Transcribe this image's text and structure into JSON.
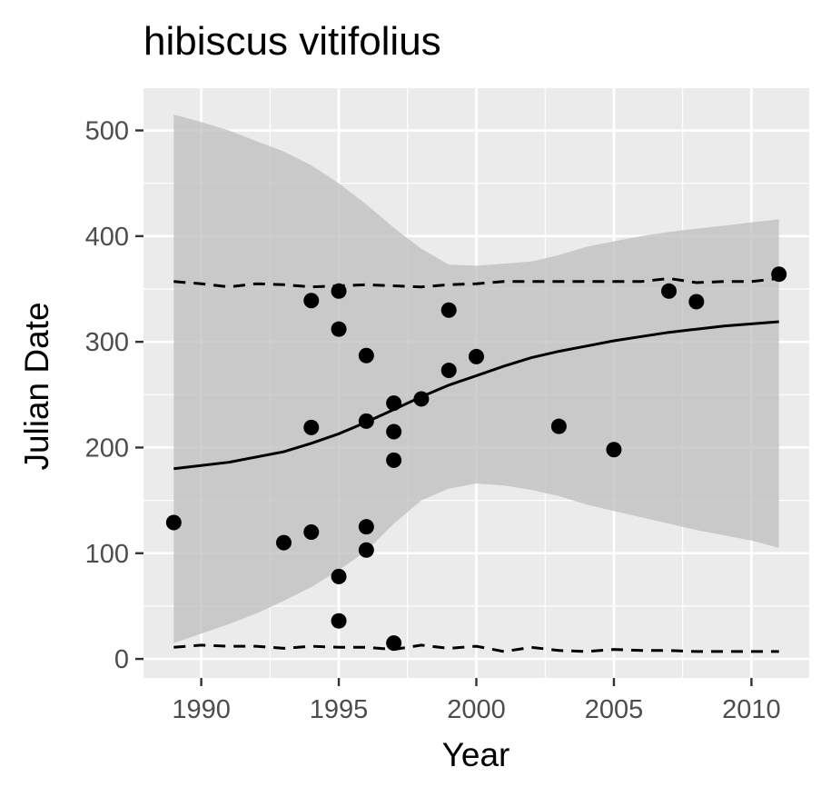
{
  "chart_data": {
    "type": "scatter",
    "title": "hibiscus vitifolius",
    "xlabel": "Year",
    "ylabel": "Julian Date",
    "xlim": [
      1987.9,
      2012.1
    ],
    "ylim": [
      -18,
      540
    ],
    "x_ticks": [
      1990,
      1995,
      2000,
      2005,
      2010
    ],
    "y_ticks": [
      0,
      100,
      200,
      300,
      400,
      500
    ],
    "x_tick_labels": [
      "1990",
      "1995",
      "2000",
      "2005",
      "2010"
    ],
    "y_tick_labels": [
      "0",
      "100",
      "200",
      "300",
      "400",
      "500"
    ],
    "grid": true,
    "legend": "none",
    "points": [
      {
        "x": 1989,
        "y": 129
      },
      {
        "x": 1993,
        "y": 110
      },
      {
        "x": 1994,
        "y": 339
      },
      {
        "x": 1994,
        "y": 219
      },
      {
        "x": 1994,
        "y": 120
      },
      {
        "x": 1995,
        "y": 348
      },
      {
        "x": 1995,
        "y": 312
      },
      {
        "x": 1995,
        "y": 78
      },
      {
        "x": 1995,
        "y": 36
      },
      {
        "x": 1996,
        "y": 287
      },
      {
        "x": 1996,
        "y": 225
      },
      {
        "x": 1996,
        "y": 125
      },
      {
        "x": 1996,
        "y": 103
      },
      {
        "x": 1997,
        "y": 242
      },
      {
        "x": 1997,
        "y": 215
      },
      {
        "x": 1997,
        "y": 188
      },
      {
        "x": 1997,
        "y": 15
      },
      {
        "x": 1998,
        "y": 246
      },
      {
        "x": 1999,
        "y": 330
      },
      {
        "x": 1999,
        "y": 273
      },
      {
        "x": 2000,
        "y": 286
      },
      {
        "x": 2003,
        "y": 220
      },
      {
        "x": 2005,
        "y": 198
      },
      {
        "x": 2007,
        "y": 348
      },
      {
        "x": 2008,
        "y": 338
      },
      {
        "x": 2011,
        "y": 364
      }
    ],
    "fit_line": {
      "x": [
        1989,
        1991,
        1993,
        1994,
        1995,
        1996,
        1997,
        1998,
        1999,
        2000,
        2001,
        2002,
        2003,
        2004,
        2005,
        2006,
        2007,
        2008,
        2009,
        2010,
        2011
      ],
      "y": [
        180,
        186,
        196,
        204,
        213,
        224,
        236,
        248,
        259,
        268,
        277,
        285,
        291,
        296,
        301,
        305,
        309,
        312,
        315,
        317,
        319
      ]
    },
    "confidence_band": {
      "x": [
        1989,
        1990,
        1991,
        1992,
        1993,
        1994,
        1995,
        1996,
        1997,
        1998,
        1999,
        2000,
        2001,
        2002,
        2003,
        2004,
        2005,
        2006,
        2007,
        2008,
        2009,
        2010,
        2011
      ],
      "upper": [
        515,
        508,
        500,
        490,
        480,
        467,
        450,
        430,
        408,
        388,
        373,
        372,
        374,
        376,
        382,
        390,
        395,
        400,
        404,
        407,
        410,
        413,
        416
      ],
      "lower": [
        15,
        24,
        33,
        43,
        55,
        68,
        84,
        102,
        128,
        150,
        161,
        166,
        164,
        160,
        154,
        146,
        140,
        134,
        128,
        122,
        117,
        112,
        105
      ]
    },
    "quantile_upper": {
      "x": [
        1989,
        1990,
        1991,
        1992,
        1993,
        1994,
        1995,
        1996,
        1997,
        1998,
        1999,
        2000,
        2001,
        2002,
        2003,
        2004,
        2005,
        2006,
        2007,
        2008,
        2009,
        2010,
        2011
      ],
      "y": [
        357,
        355,
        352,
        355,
        354,
        352,
        353,
        354,
        353,
        352,
        354,
        355,
        357,
        357,
        357,
        357,
        357,
        357,
        360,
        356,
        357,
        357,
        360
      ]
    },
    "quantile_lower": {
      "x": [
        1989,
        1990,
        1991,
        1992,
        1993,
        1994,
        1995,
        1996,
        1997,
        1998,
        1999,
        2000,
        2001,
        2002,
        2003,
        2004,
        2005,
        2006,
        2007,
        2008,
        2009,
        2010,
        2011
      ],
      "y": [
        11,
        13,
        12,
        12,
        10,
        12,
        11,
        11,
        9,
        13,
        10,
        12,
        7,
        11,
        8,
        7,
        9,
        8,
        8,
        7,
        7,
        7,
        7
      ]
    },
    "colors": {
      "panel_background": "#ebebeb",
      "grid": "#ffffff",
      "band": "#bdbdbd",
      "points": "#000000",
      "lines": "#000000",
      "tick_text": "#4d4d4d"
    }
  }
}
